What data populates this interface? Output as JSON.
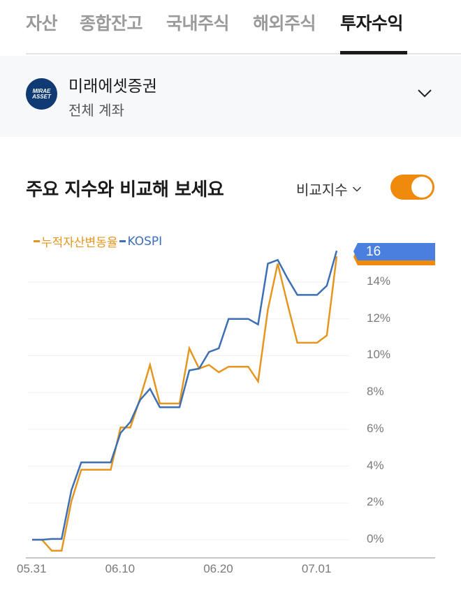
{
  "tabs": [
    {
      "label": "자산",
      "active": false
    },
    {
      "label": "종합잔고",
      "active": false
    },
    {
      "label": "국내주식",
      "active": false
    },
    {
      "label": "해외주식",
      "active": false
    },
    {
      "label": "투자수익",
      "active": true
    }
  ],
  "account": {
    "logo_line1": "MIRAE",
    "logo_line2": "ASSET",
    "name": "미래에셋증권",
    "subtitle": "전체 계좌",
    "icon": "chevron-down-icon"
  },
  "section": {
    "title": "주요 지수와 비교해 보세요",
    "compare_label": "비교지수",
    "compare_icon": "chevron-down-icon",
    "toggle_on": true
  },
  "colors": {
    "accent_orange": "#f08a0c",
    "series_asset": "#e5961e",
    "series_kospi": "#3d6fb6",
    "callout_blue": "#4a7fe0",
    "callout_orange": "#f08a0c",
    "tab_inactive": "#9a9a9a",
    "account_bg": "#f7f8fa"
  },
  "chart_data": {
    "type": "line",
    "title": "주요 지수와 비교해 보세요",
    "xlabel": "",
    "ylabel": "",
    "ylim": [
      -0.8,
      16
    ],
    "yticks": [
      "0%",
      "2%",
      "4%",
      "6%",
      "8%",
      "10%",
      "12%",
      "14%"
    ],
    "ytick_values": [
      0,
      2,
      4,
      6,
      8,
      10,
      12,
      14
    ],
    "xtick_labels": [
      "05.31",
      "06.10",
      "06.20",
      "07.01"
    ],
    "xtick_index": [
      0,
      9,
      19,
      29
    ],
    "grid": true,
    "legend_position": "top-left",
    "end_callout": {
      "label": "16",
      "series": "KOSPI"
    },
    "x": [
      0,
      1,
      2,
      3,
      4,
      5,
      6,
      7,
      8,
      9,
      10,
      11,
      12,
      13,
      14,
      15,
      16,
      17,
      18,
      19,
      20,
      21,
      22,
      23,
      24,
      25,
      26,
      27,
      28,
      29,
      30,
      31
    ],
    "series": [
      {
        "name": "누적자산변동율",
        "color": "#e5961e",
        "values": [
          0.0,
          0.0,
          -0.6,
          -0.6,
          2.1,
          3.8,
          3.8,
          3.8,
          3.8,
          6.1,
          6.1,
          7.7,
          9.5,
          7.4,
          7.4,
          7.4,
          10.4,
          9.3,
          9.5,
          9.1,
          9.4,
          9.4,
          9.4,
          8.6,
          12.5,
          15.0,
          12.8,
          10.7,
          10.7,
          10.7,
          11.1,
          15.4
        ]
      },
      {
        "name": "KOSPI",
        "color": "#3d6fb6",
        "values": [
          0.0,
          0.0,
          0.04,
          0.04,
          2.7,
          4.2,
          4.2,
          4.2,
          4.2,
          5.8,
          6.4,
          7.6,
          8.2,
          7.2,
          7.2,
          7.2,
          9.2,
          9.3,
          10.2,
          10.4,
          12.0,
          12.0,
          12.0,
          11.7,
          15.0,
          15.2,
          14.2,
          13.3,
          13.3,
          13.3,
          13.8,
          15.7
        ]
      }
    ]
  }
}
